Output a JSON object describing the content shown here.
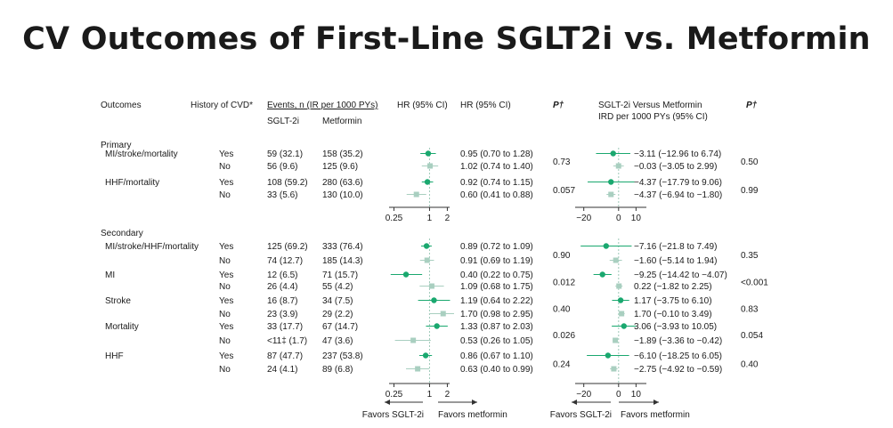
{
  "title": "CV Outcomes of First-Line SGLT2i vs. Metformin",
  "colors": {
    "yes": "#1aa86f",
    "no": "#a9cfc0",
    "axis": "#333333",
    "text": "#1a1a1a"
  },
  "headers": {
    "outcomes": "Outcomes",
    "history": "History of CVD*",
    "events": "Events, n (IR per 1000 PYs)",
    "sglt2i": "SGLT-2i",
    "metformin": "Metformin",
    "hr_plot": "HR (95% CI)",
    "hr_text": "HR (95% CI)",
    "p": "P†",
    "ird_line1": "SGLT-2i Versus Metformin",
    "ird_line2": "IRD per 1000 PYs (95% CI)",
    "p2": "P†"
  },
  "sections": {
    "primary": "Primary",
    "secondary": "Secondary"
  },
  "chart_data": {
    "type": "forest",
    "hr_axis": {
      "scale": "log",
      "ticks": [
        "0.25",
        "1",
        "2"
      ],
      "tick_values": [
        0.25,
        1,
        2
      ],
      "range": [
        0.18,
        2.6
      ]
    },
    "ird_axis": {
      "scale": "linear",
      "ticks": [
        "−20",
        "0",
        "10"
      ],
      "tick_values": [
        -20,
        0,
        10
      ],
      "range": [
        -27,
        18
      ]
    },
    "favors": {
      "left": "Favors SGLT-2i",
      "right": "Favors metformin"
    },
    "groups": [
      {
        "label": "MI/stroke/mortality",
        "section": "primary",
        "p_hr": "0.73",
        "p_ird": "0.50",
        "rows": [
          {
            "cvd": "Yes",
            "sglt2i": "59 (32.1)",
            "metformin": "158 (35.2)",
            "hr_text": "0.95 (0.70 to 1.28)",
            "hr": [
              0.95,
              0.7,
              1.28
            ],
            "ird_text": "−3.11 (−12.96 to 6.74)",
            "ird": [
              -3.11,
              -12.96,
              6.74
            ]
          },
          {
            "cvd": "No",
            "sglt2i": "56 (9.6)",
            "metformin": "125 (9.6)",
            "hr_text": "1.02 (0.74 to 1.40)",
            "hr": [
              1.02,
              0.74,
              1.4
            ],
            "ird_text": "−0.03 (−3.05 to 2.99)",
            "ird": [
              -0.03,
              -3.05,
              2.99
            ]
          }
        ]
      },
      {
        "label": "HHF/mortality",
        "section": "primary",
        "p_hr": "0.057",
        "p_ird": "0.99",
        "rows": [
          {
            "cvd": "Yes",
            "sglt2i": "108 (59.2)",
            "metformin": "280 (63.6)",
            "hr_text": "0.92 (0.74 to 1.15)",
            "hr": [
              0.92,
              0.74,
              1.15
            ],
            "ird_text": "−4.37 (−17.79 to 9.06)",
            "ird": [
              -4.37,
              -17.79,
              9.06
            ]
          },
          {
            "cvd": "No",
            "sglt2i": "33 (5.6)",
            "metformin": "130 (10.0)",
            "hr_text": "0.60 (0.41 to 0.88)",
            "hr": [
              0.6,
              0.41,
              0.88
            ],
            "ird_text": "−4.37 (−6.94 to −1.80)",
            "ird": [
              -4.37,
              -6.94,
              -1.8
            ]
          }
        ]
      },
      {
        "label": "MI/stroke/HHF/mortality",
        "section": "secondary",
        "p_hr": "0.90",
        "p_ird": "0.35",
        "rows": [
          {
            "cvd": "Yes",
            "sglt2i": "125 (69.2)",
            "metformin": "333 (76.4)",
            "hr_text": "0.89 (0.72 to 1.09)",
            "hr": [
              0.89,
              0.72,
              1.09
            ],
            "ird_text": "−7.16 (−21.8 to 7.49)",
            "ird": [
              -7.16,
              -21.8,
              7.49
            ]
          },
          {
            "cvd": "No",
            "sglt2i": "74 (12.7)",
            "metformin": "185 (14.3)",
            "hr_text": "0.91 (0.69 to 1.19)",
            "hr": [
              0.91,
              0.69,
              1.19
            ],
            "ird_text": "−1.60 (−5.14 to 1.94)",
            "ird": [
              -1.6,
              -5.14,
              1.94
            ]
          }
        ]
      },
      {
        "label": "MI",
        "section": "secondary",
        "p_hr": "0.012",
        "p_ird": "<0.001",
        "rows": [
          {
            "cvd": "Yes",
            "sglt2i": "12 (6.5)",
            "metformin": "71 (15.7)",
            "hr_text": "0.40 (0.22 to 0.75)",
            "hr": [
              0.4,
              0.22,
              0.75
            ],
            "ird_text": "−9.25 (−14.42 to −4.07)",
            "ird": [
              -9.25,
              -14.42,
              -4.07
            ]
          },
          {
            "cvd": "No",
            "sglt2i": "26 (4.4)",
            "metformin": "55 (4.2)",
            "hr_text": "1.09 (0.68 to 1.75)",
            "hr": [
              1.09,
              0.68,
              1.75
            ],
            "ird_text": "0.22 (−1.82 to 2.25)",
            "ird": [
              0.22,
              -1.82,
              2.25
            ]
          }
        ]
      },
      {
        "label": "Stroke",
        "section": "secondary",
        "p_hr": "0.40",
        "p_ird": "0.83",
        "rows": [
          {
            "cvd": "Yes",
            "sglt2i": "16 (8.7)",
            "metformin": "34 (7.5)",
            "hr_text": "1.19 (0.64 to 2.22)",
            "hr": [
              1.19,
              0.64,
              2.22
            ],
            "ird_text": "1.17 (−3.75 to 6.10)",
            "ird": [
              1.17,
              -3.75,
              6.1
            ]
          },
          {
            "cvd": "No",
            "sglt2i": "23 (3.9)",
            "metformin": "29 (2.2)",
            "hr_text": "1.70 (0.98 to 2.95)",
            "hr": [
              1.7,
              0.98,
              2.95
            ],
            "ird_text": "1.70 (−0.10 to 3.49)",
            "ird": [
              1.7,
              -0.1,
              3.49
            ]
          }
        ]
      },
      {
        "label": "Mortality",
        "section": "secondary",
        "p_hr": "0.026",
        "p_ird": "0.054",
        "rows": [
          {
            "cvd": "Yes",
            "sglt2i": "33 (17.7)",
            "metformin": "67 (14.7)",
            "hr_text": "1.33 (0.87 to 2.03)",
            "hr": [
              1.33,
              0.87,
              2.03
            ],
            "ird_text": "3.06 (−3.93 to 10.05)",
            "ird": [
              3.06,
              -3.93,
              10.05
            ]
          },
          {
            "cvd": "No",
            "sglt2i": "<11‡ (1.7)",
            "metformin": "47 (3.6)",
            "hr_text": "0.53 (0.26 to 1.05)",
            "hr": [
              0.53,
              0.26,
              1.05
            ],
            "ird_text": "−1.89 (−3.36 to −0.42)",
            "ird": [
              -1.89,
              -3.36,
              -0.42
            ]
          }
        ]
      },
      {
        "label": "HHF",
        "section": "secondary",
        "p_hr": "0.24",
        "p_ird": "0.40",
        "rows": [
          {
            "cvd": "Yes",
            "sglt2i": "87 (47.7)",
            "metformin": "237 (53.8)",
            "hr_text": "0.86 (0.67 to 1.10)",
            "hr": [
              0.86,
              0.67,
              1.1
            ],
            "ird_text": "−6.10 (−18.25 to 6.05)",
            "ird": [
              -6.1,
              -18.25,
              6.05
            ]
          },
          {
            "cvd": "No",
            "sglt2i": "24 (4.1)",
            "metformin": "89 (6.8)",
            "hr_text": "0.63 (0.40 to 0.99)",
            "hr": [
              0.63,
              0.4,
              0.99
            ],
            "ird_text": "−2.75 (−4.92 to −0.59)",
            "ird": [
              -2.75,
              -4.92,
              -0.59
            ]
          }
        ]
      }
    ]
  }
}
